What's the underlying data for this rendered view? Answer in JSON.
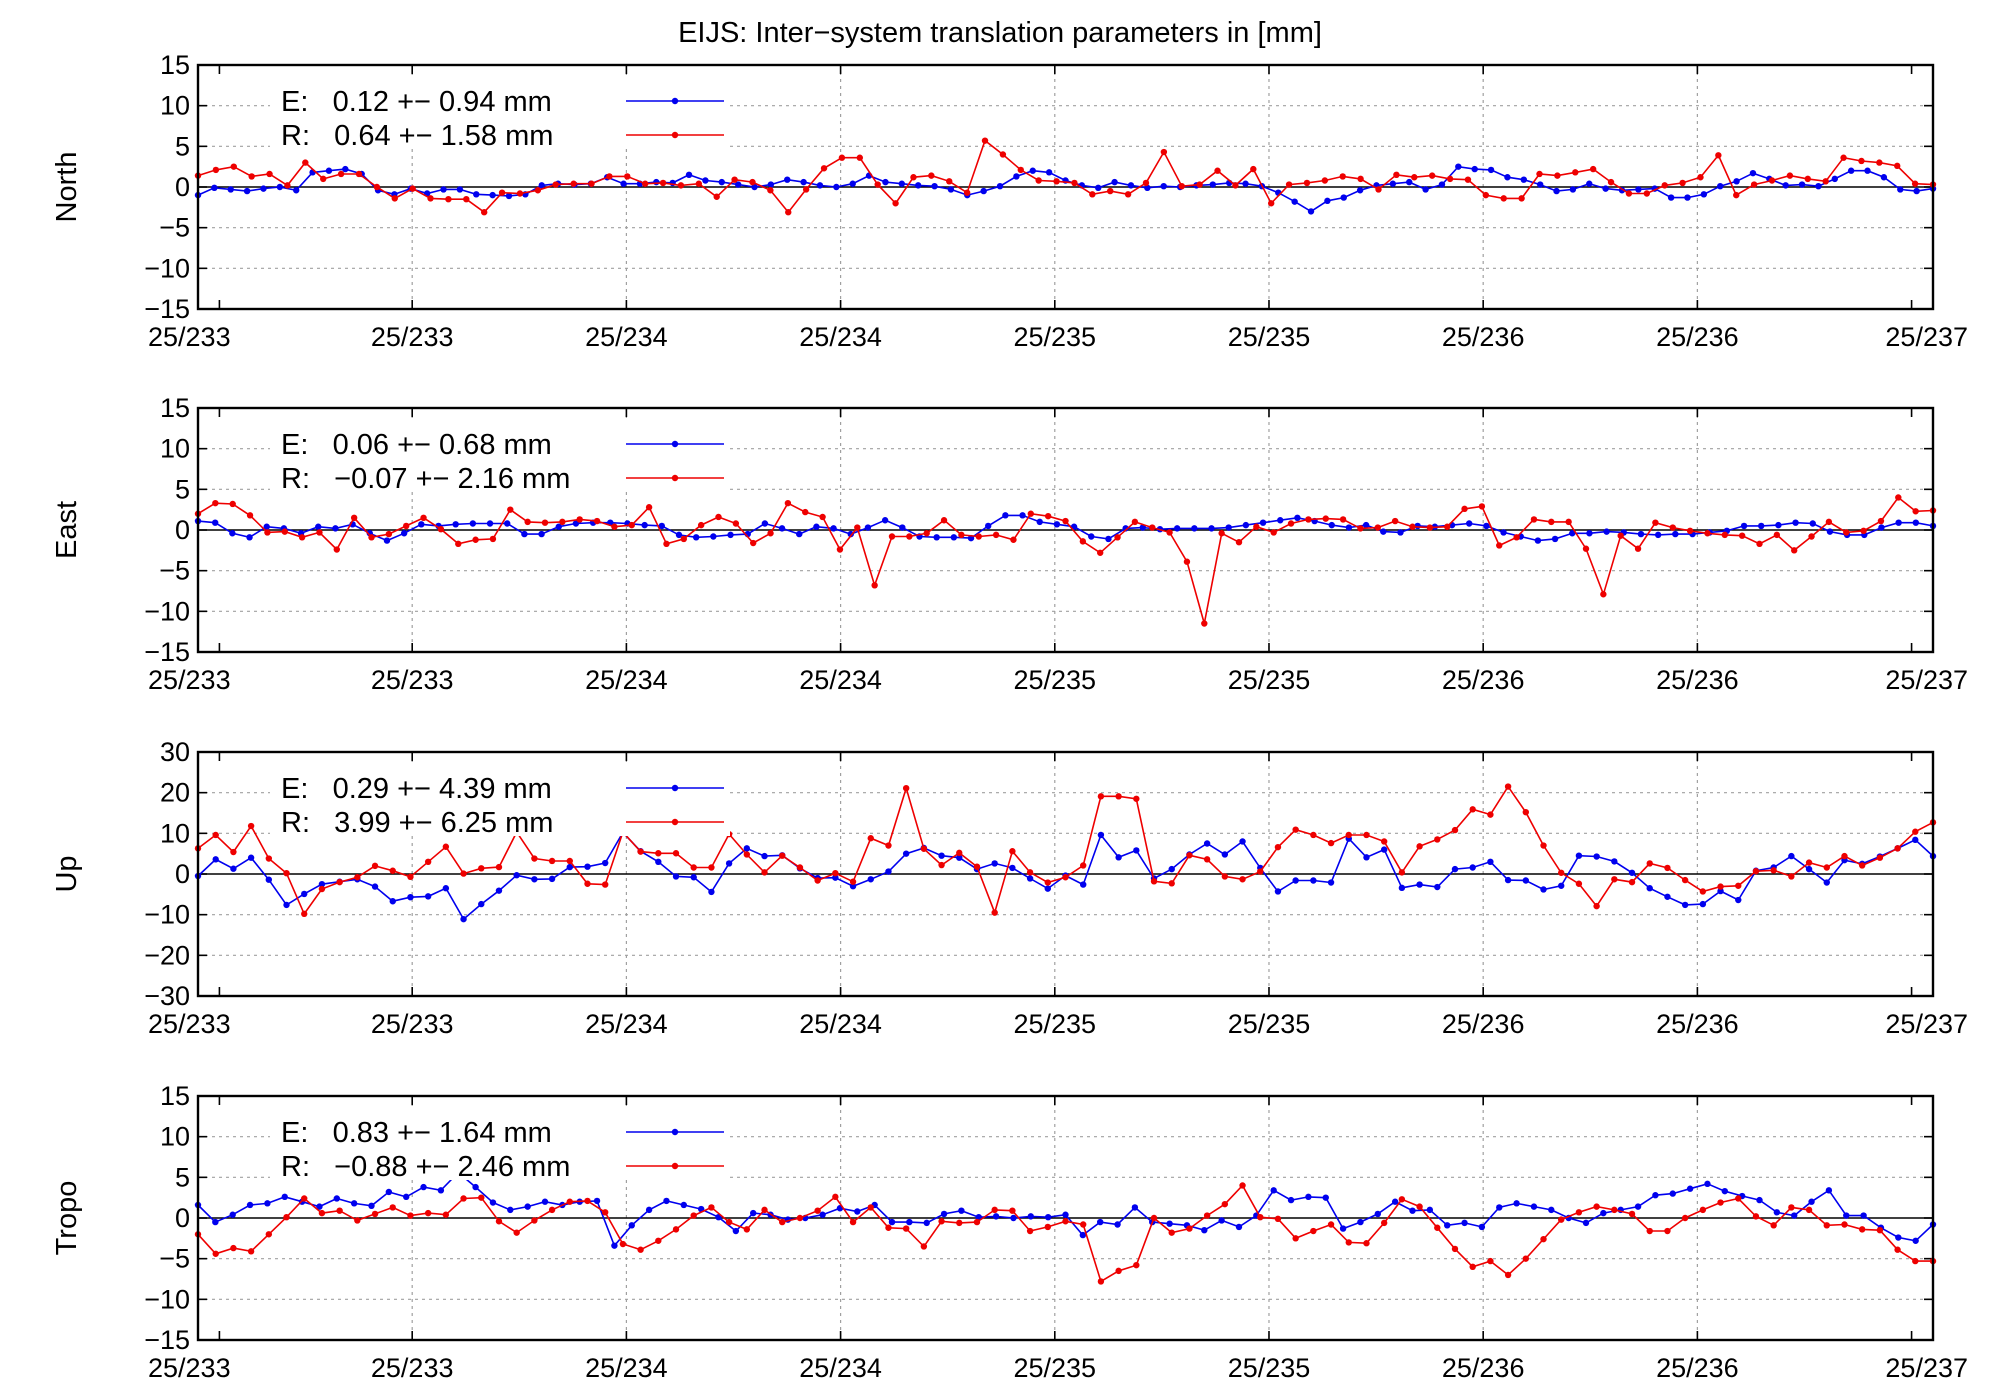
{
  "title": "EIJS: Inter−system translation parameters in [mm]",
  "x_tick_labels": [
    "25/233",
    "25/233",
    "25/234",
    "25/234",
    "25/235",
    "25/235",
    "25/236",
    "25/236",
    "25/237"
  ],
  "colors": {
    "E": "#0000ee",
    "R": "#ee0000",
    "axis": "#000000",
    "grid": "#a0a0a0"
  },
  "chart_data": [
    {
      "type": "line",
      "ylabel": "North",
      "ylim": [
        -15,
        15
      ],
      "yticks": [
        15,
        10,
        5,
        0,
        -5,
        -10,
        -15
      ],
      "xlim": [
        0,
        8.1
      ],
      "series": [
        {
          "name": "E",
          "legend": "E:   0.12 +− 0.94 mm",
          "values": [
            -1.0,
            -0.1,
            -0.3,
            -0.5,
            -0.2,
            0.0,
            -0.4,
            1.8,
            2.0,
            2.2,
            1.6,
            -0.4,
            -0.9,
            -0.2,
            -0.8,
            -0.3,
            -0.3,
            -0.9,
            -1.0,
            -1.1,
            -0.9,
            0.2,
            0.4,
            0.3,
            0.4,
            1.2,
            0.4,
            0.4,
            0.6,
            0.5,
            1.5,
            0.8,
            0.6,
            0.3,
            0.0,
            0.3,
            0.9,
            0.6,
            0.2,
            0.0,
            0.4,
            1.4,
            0.6,
            0.4,
            0.2,
            0.1,
            -0.3,
            -1.0,
            -0.5,
            0.1,
            1.3,
            2.0,
            1.8,
            0.8,
            0.2,
            -0.1,
            0.6,
            0.2,
            -0.1,
            0.1,
            0.0,
            0.2,
            0.3,
            0.5,
            0.4,
            0.1,
            -0.7,
            -1.8,
            -3.0,
            -1.7,
            -1.3,
            -0.4,
            0.2,
            0.4,
            0.6,
            -0.3,
            0.3,
            2.5,
            2.2,
            2.1,
            1.2,
            0.9,
            0.3,
            -0.5,
            -0.3,
            0.4,
            -0.2,
            -0.4,
            -0.3,
            -0.2,
            -1.3,
            -1.3,
            -0.9,
            0.1,
            0.7,
            1.7,
            1.0,
            0.2,
            0.3,
            0.1,
            1.0,
            2.0,
            2.0,
            1.2,
            -0.3,
            -0.5,
            -0.2
          ]
        },
        {
          "name": "R",
          "legend": "R:   0.64 +− 1.58 mm",
          "values": [
            1.4,
            2.1,
            2.5,
            1.3,
            1.6,
            0.2,
            3.0,
            1.0,
            1.6,
            1.6,
            0.0,
            -1.4,
            -0.2,
            -1.4,
            -1.5,
            -1.5,
            -3.1,
            -0.7,
            -0.8,
            -0.4,
            0.3,
            0.4,
            0.4,
            1.3,
            1.3,
            0.4,
            0.5,
            0.2,
            0.4,
            -1.2,
            0.9,
            0.6,
            -0.4,
            -3.1,
            -0.3,
            2.3,
            3.6,
            3.6,
            0.3,
            -2.0,
            1.2,
            1.4,
            0.7,
            -0.7,
            5.7,
            4.0,
            2.1,
            0.8,
            0.7,
            0.5,
            -0.9,
            -0.5,
            -0.9,
            0.5,
            4.3,
            0.1,
            0.3,
            2.0,
            0.2,
            2.2,
            -2.0,
            0.3,
            0.5,
            0.8,
            1.3,
            1.0,
            -0.3,
            1.5,
            1.2,
            1.4,
            1.0,
            0.9,
            -1.0,
            -1.4,
            -1.4,
            1.6,
            1.4,
            1.8,
            2.2,
            0.6,
            -0.8,
            -0.8,
            0.2,
            0.5,
            1.2,
            3.9,
            -1.0,
            0.3,
            0.8,
            1.4,
            1.0,
            0.7,
            3.6,
            3.2,
            3.0,
            2.6,
            0.4,
            0.3
          ]
        }
      ]
    },
    {
      "type": "line",
      "ylabel": "East",
      "ylim": [
        -15,
        15
      ],
      "yticks": [
        15,
        10,
        5,
        0,
        -5,
        -10,
        -15
      ],
      "xlim": [
        0,
        8.1
      ],
      "series": [
        {
          "name": "E",
          "legend": "E:   0.06 +− 0.68 mm",
          "values": [
            1.1,
            0.9,
            -0.4,
            -0.9,
            0.4,
            0.2,
            -0.4,
            0.4,
            0.2,
            0.7,
            -0.4,
            -1.3,
            -0.4,
            0.7,
            0.5,
            0.7,
            0.8,
            0.8,
            0.8,
            -0.5,
            -0.5,
            0.4,
            0.8,
            0.9,
            0.9,
            0.8,
            0.6,
            0.5,
            -0.6,
            -0.9,
            -0.8,
            -0.6,
            -0.5,
            0.8,
            0.2,
            -0.5,
            0.4,
            0.2,
            -0.5,
            0.3,
            1.2,
            0.3,
            -0.8,
            -0.9,
            -0.9,
            -1.0,
            0.5,
            1.8,
            1.8,
            1.0,
            0.7,
            0.4,
            -0.8,
            -1.1,
            0.2,
            0.3,
            0.1,
            0.2,
            0.2,
            0.2,
            0.3,
            0.6,
            0.9,
            1.2,
            1.5,
            1.1,
            0.6,
            0.3,
            0.6,
            -0.2,
            -0.3,
            0.5,
            0.4,
            0.6,
            0.8,
            0.5,
            -0.3,
            -0.8,
            -1.3,
            -1.1,
            -0.4,
            -0.4,
            -0.2,
            -0.3,
            -0.5,
            -0.6,
            -0.5,
            -0.5,
            -0.3,
            -0.1,
            0.5,
            0.5,
            0.6,
            0.9,
            0.8,
            -0.2,
            -0.6,
            -0.6,
            0.3,
            0.9,
            0.9,
            0.5
          ]
        },
        {
          "name": "R",
          "legend": "R:   −0.07 +− 2.16 mm",
          "values": [
            2.0,
            3.3,
            3.2,
            1.8,
            -0.3,
            -0.2,
            -0.9,
            -0.3,
            -2.4,
            1.5,
            -0.9,
            -0.5,
            0.5,
            1.5,
            0.1,
            -1.7,
            -1.2,
            -1.1,
            2.5,
            1.0,
            0.9,
            1.0,
            1.3,
            1.1,
            0.4,
            0.6,
            2.8,
            -1.7,
            -1.1,
            0.6,
            1.6,
            0.8,
            -1.6,
            -0.4,
            3.3,
            2.2,
            1.6,
            -2.4,
            0.3,
            -6.8,
            -0.8,
            -0.8,
            -0.4,
            1.2,
            -0.6,
            -0.8,
            -0.6,
            -1.2,
            2.0,
            1.7,
            1.1,
            -1.4,
            -2.8,
            -0.9,
            1.0,
            0.3,
            -0.3,
            -3.9,
            -11.5,
            -0.4,
            -1.5,
            0.4,
            -0.3,
            0.8,
            1.3,
            1.4,
            1.3,
            0.2,
            0.3,
            1.1,
            0.4,
            0.3,
            0.4,
            2.6,
            2.9,
            -1.9,
            -0.9,
            1.3,
            1.0,
            1.0,
            -2.3,
            -7.9,
            -0.7,
            -2.3,
            0.9,
            0.3,
            -0.1,
            -0.4,
            -0.6,
            -0.7,
            -1.7,
            -0.6,
            -2.5,
            -0.8,
            1.0,
            -0.3,
            -0.1,
            1.1,
            4.0,
            2.3,
            2.4
          ]
        }
      ]
    },
    {
      "type": "line",
      "ylabel": "Up",
      "ylim": [
        -30,
        30
      ],
      "yticks": [
        30,
        20,
        10,
        0,
        -10,
        -20,
        -30
      ],
      "xlim": [
        0,
        8.1
      ],
      "series": [
        {
          "name": "E",
          "legend": "E:   0.29 +− 4.39 mm",
          "values": [
            -0.5,
            3.6,
            1.3,
            4.0,
            -1.4,
            -7.6,
            -4.9,
            -2.5,
            -1.9,
            -1.3,
            -3.1,
            -6.7,
            -5.7,
            -5.5,
            -3.5,
            -11.1,
            -7.4,
            -4.1,
            -0.3,
            -1.3,
            -1.2,
            1.7,
            1.8,
            2.7,
            10.2,
            5.6,
            3.0,
            -0.6,
            -0.8,
            -4.4,
            2.6,
            6.3,
            4.4,
            4.6,
            1.4,
            -1.0,
            -0.9,
            -3.0,
            -1.3,
            0.6,
            5.0,
            6.4,
            4.5,
            4.0,
            1.2,
            2.6,
            1.5,
            -1.1,
            -3.6,
            -0.4,
            -2.6,
            9.6,
            4.1,
            5.8,
            -1.1,
            1.2,
            4.8,
            7.5,
            4.8,
            8.0,
            1.5,
            -4.3,
            -1.6,
            -1.6,
            -2.1,
            8.7,
            4.1,
            6.0,
            -3.4,
            -2.6,
            -3.2,
            1.2,
            1.6,
            3.0,
            -1.5,
            -1.6,
            -3.8,
            -2.9,
            4.5,
            4.3,
            3.1,
            0.3,
            -3.5,
            -5.6,
            -7.6,
            -7.4,
            -4.2,
            -6.4,
            0.8,
            1.6,
            4.4,
            1.2,
            -2.1,
            3.4,
            2.5,
            4.3,
            6.3,
            8.4,
            4.4
          ]
        },
        {
          "name": "R",
          "legend": "R:   3.99 +− 6.25 mm",
          "values": [
            6.3,
            9.6,
            5.4,
            11.8,
            3.8,
            0.2,
            -9.8,
            -3.7,
            -2.0,
            -0.8,
            2.0,
            0.8,
            -0.7,
            3.0,
            6.7,
            0.1,
            1.4,
            1.7,
            10.3,
            3.8,
            3.2,
            3.2,
            -2.4,
            -2.6,
            10.3,
            5.5,
            5.1,
            5.1,
            1.6,
            1.6,
            9.8,
            4.8,
            0.4,
            4.5,
            1.6,
            -1.6,
            0.2,
            -1.9,
            8.8,
            7.0,
            21.1,
            6.2,
            2.2,
            5.2,
            1.8,
            -9.5,
            5.6,
            0.4,
            -2.1,
            -0.8,
            2.1,
            19.1,
            19.1,
            18.5,
            -1.8,
            -2.3,
            4.6,
            3.6,
            -0.6,
            -1.3,
            0.6,
            6.6,
            10.9,
            9.6,
            7.6,
            9.6,
            9.6,
            8.0,
            0.4,
            6.8,
            8.5,
            10.8,
            15.9,
            14.6,
            21.5,
            15.2,
            7.0,
            0.3,
            -2.4,
            -7.9,
            -1.3,
            -2.0,
            2.6,
            1.5,
            -1.5,
            -4.3,
            -3.1,
            -2.9,
            0.7,
            0.9,
            -0.6,
            2.8,
            1.6,
            4.4,
            2.1,
            4.0,
            6.3,
            10.4,
            12.7
          ]
        }
      ]
    },
    {
      "type": "line",
      "ylabel": "Tropo",
      "ylim": [
        -15,
        15
      ],
      "yticks": [
        15,
        10,
        5,
        0,
        -5,
        -10,
        -15
      ],
      "xlim": [
        0,
        8.1
      ],
      "series": [
        {
          "name": "E",
          "legend": "E:   0.83 +− 1.64 mm",
          "values": [
            1.6,
            -0.5,
            0.4,
            1.6,
            1.8,
            2.6,
            2.0,
            1.4,
            2.4,
            1.8,
            1.5,
            3.2,
            2.6,
            3.8,
            3.4,
            5.6,
            3.8,
            1.9,
            1.0,
            1.4,
            2.0,
            1.6,
            2.0,
            2.1,
            -3.4,
            -0.9,
            1.0,
            2.1,
            1.6,
            1.1,
            0.1,
            -1.6,
            0.6,
            0.4,
            -0.2,
            0.0,
            0.4,
            1.2,
            0.8,
            1.6,
            -0.5,
            -0.5,
            -0.6,
            0.5,
            0.9,
            0.1,
            0.2,
            0.0,
            0.2,
            0.1,
            0.4,
            -2.1,
            -0.5,
            -0.8,
            1.3,
            -0.5,
            -0.7,
            -0.9,
            -1.5,
            -0.3,
            -1.1,
            0.3,
            3.4,
            2.2,
            2.6,
            2.5,
            -1.3,
            -0.5,
            0.5,
            2.0,
            0.9,
            1.0,
            -0.9,
            -0.6,
            -1.1,
            1.3,
            1.8,
            1.4,
            1.0,
            0.0,
            -0.6,
            0.6,
            1.0,
            1.4,
            2.8,
            3.0,
            3.6,
            4.2,
            3.3,
            2.7,
            2.2,
            0.7,
            0.3,
            2.0,
            3.4,
            0.3,
            0.3,
            -1.2,
            -2.4,
            -2.8,
            -0.8
          ]
        },
        {
          "name": "R",
          "legend": "R:   −0.88 +− 2.46 mm",
          "values": [
            -2.0,
            -4.4,
            -3.7,
            -4.1,
            -2.0,
            0.1,
            2.4,
            0.6,
            0.9,
            -0.3,
            0.5,
            1.3,
            0.3,
            0.6,
            0.4,
            2.4,
            2.5,
            -0.4,
            -1.8,
            -0.3,
            1.0,
            2.0,
            2.1,
            0.7,
            -3.2,
            -3.9,
            -2.8,
            -1.4,
            0.3,
            1.3,
            -0.5,
            -1.4,
            1.0,
            -0.5,
            0.0,
            0.9,
            2.6,
            -0.5,
            1.3,
            -1.2,
            -1.3,
            -3.5,
            -0.4,
            -0.6,
            -0.5,
            1.0,
            0.9,
            -1.6,
            -1.1,
            -0.4,
            -0.8,
            -7.8,
            -6.5,
            -5.8,
            0.0,
            -1.8,
            -1.3,
            0.3,
            1.7,
            4.0,
            0.1,
            -0.1,
            -2.5,
            -1.6,
            -0.8,
            -3.0,
            -3.1,
            -0.6,
            2.3,
            1.4,
            -1.2,
            -3.8,
            -6.0,
            -5.3,
            -7.0,
            -5.0,
            -2.6,
            -0.2,
            0.7,
            1.4,
            1.0,
            0.5,
            -1.6,
            -1.6,
            0.0,
            1.0,
            1.9,
            2.4,
            0.2,
            -0.9,
            1.3,
            1.0,
            -0.9,
            -0.8,
            -1.4,
            -1.5,
            -3.9,
            -5.3,
            -5.3
          ]
        }
      ]
    }
  ]
}
